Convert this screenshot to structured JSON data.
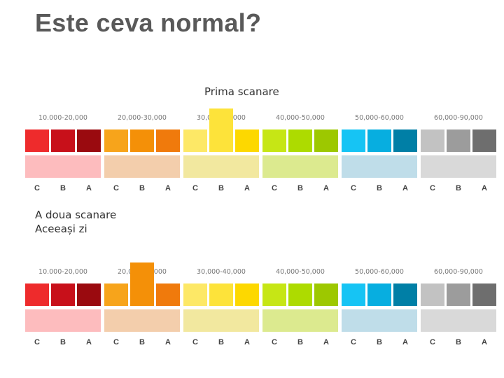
{
  "slide": {
    "title": "Este ceva normal?",
    "first_scan_label": "Prima scanare",
    "second_scan_label_line1": "A doua scanare",
    "second_scan_label_line2": "Aceeași zi"
  },
  "letters": [
    "C",
    "B",
    "A"
  ],
  "groups": [
    {
      "range": "10.000-20,000",
      "colors": [
        "#ee2b2c",
        "#c8101a",
        "#9a0a0f"
      ],
      "pale": "#fdbcbe"
    },
    {
      "range": "20,000-30,000",
      "colors": [
        "#f7a41b",
        "#f49008",
        "#f07a0c"
      ],
      "pale": "#f3ceac"
    },
    {
      "range": "30,000-40,000",
      "colors": [
        "#fde866",
        "#fde33a",
        "#fdd800"
      ],
      "pale": "#f2e89f"
    },
    {
      "range": "40,000-50,000",
      "colors": [
        "#c6e615",
        "#addb00",
        "#9dc800"
      ],
      "pale": "#dcea8f"
    },
    {
      "range": "50,000-60,000",
      "colors": [
        "#16c4f4",
        "#07aee0",
        "#007fa6"
      ],
      "pale": "#bfdde9"
    },
    {
      "range": "60,000-90,000",
      "colors": [
        "#c2c2c2",
        "#9c9c9c",
        "#6e6e6e"
      ],
      "pale": "#d9d9d9"
    }
  ],
  "scans": [
    {
      "name": "first",
      "highlight": {
        "group": 2,
        "index": 1
      }
    },
    {
      "name": "second",
      "highlight": {
        "group": 1,
        "index": 1
      }
    }
  ]
}
